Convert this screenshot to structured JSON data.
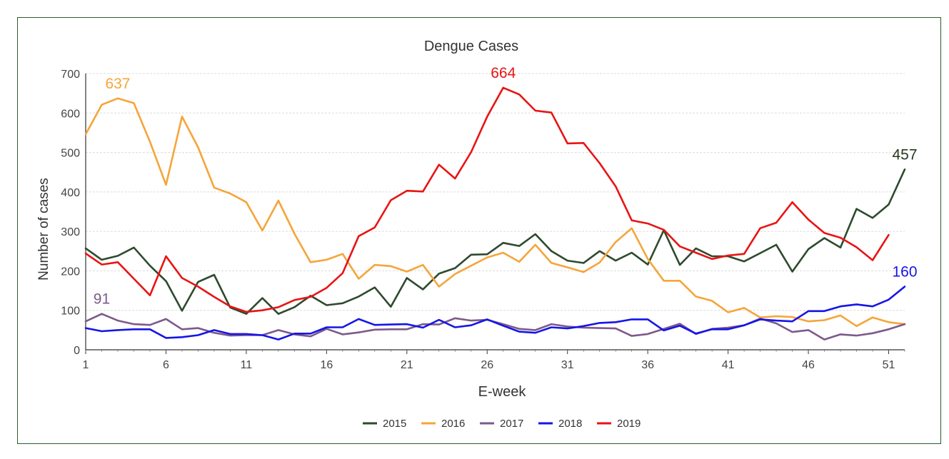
{
  "chart_data": {
    "type": "line",
    "title": "Dengue Cases",
    "xlabel": "E-week",
    "ylabel": "Number of cases",
    "ylim": [
      0,
      700
    ],
    "yticks": [
      0,
      100,
      200,
      300,
      400,
      500,
      600,
      700
    ],
    "xticks": [
      1,
      6,
      11,
      16,
      21,
      26,
      31,
      36,
      41,
      46,
      51
    ],
    "xlim": [
      1,
      52
    ],
    "grid": true,
    "legend_position": "bottom",
    "x": [
      1,
      2,
      3,
      4,
      5,
      6,
      7,
      8,
      9,
      10,
      11,
      12,
      13,
      14,
      15,
      16,
      17,
      18,
      19,
      20,
      21,
      22,
      23,
      24,
      25,
      26,
      27,
      28,
      29,
      30,
      31,
      32,
      33,
      34,
      35,
      36,
      37,
      38,
      39,
      40,
      41,
      42,
      43,
      44,
      45,
      46,
      47,
      48,
      49,
      50,
      51,
      52
    ],
    "series": [
      {
        "name": "2015",
        "color": "#2e4a2e",
        "values": [
          257,
          228,
          238,
          259,
          213,
          174,
          99,
          172,
          190,
          107,
          91,
          131,
          91,
          108,
          137,
          113,
          118,
          135,
          158,
          109,
          182,
          153,
          193,
          207,
          241,
          242,
          271,
          263,
          293,
          250,
          226,
          220,
          250,
          226,
          246,
          216,
          303,
          215,
          257,
          237,
          237,
          224,
          245,
          266,
          198,
          255,
          283,
          259,
          357,
          334,
          368,
          457
        ]
      },
      {
        "name": "2016",
        "color": "#f5a53a",
        "values": [
          546,
          621,
          637,
          625,
          527,
          418,
          591,
          513,
          411,
          396,
          374,
          302,
          378,
          294,
          222,
          228,
          243,
          180,
          215,
          212,
          198,
          215,
          160,
          192,
          213,
          234,
          246,
          223,
          266,
          220,
          209,
          197,
          221,
          273,
          308,
          230,
          175,
          175,
          135,
          124,
          95,
          106,
          82,
          85,
          83,
          72,
          75,
          87,
          60,
          82,
          70,
          65
        ]
      },
      {
        "name": "2017",
        "color": "#7d5a8a",
        "values": [
          72,
          91,
          74,
          65,
          63,
          78,
          52,
          55,
          43,
          36,
          37,
          37,
          50,
          39,
          34,
          53,
          39,
          44,
          51,
          52,
          52,
          65,
          64,
          80,
          74,
          76,
          65,
          53,
          50,
          65,
          59,
          56,
          55,
          54,
          35,
          40,
          53,
          66,
          40,
          53,
          56,
          62,
          79,
          67,
          45,
          50,
          26,
          39,
          36,
          42,
          52,
          65
        ]
      },
      {
        "name": "2018",
        "color": "#1515e8",
        "values": [
          55,
          47,
          50,
          52,
          52,
          30,
          32,
          37,
          50,
          40,
          40,
          37,
          26,
          41,
          41,
          57,
          57,
          78,
          63,
          64,
          65,
          56,
          76,
          57,
          62,
          77,
          61,
          46,
          43,
          57,
          54,
          60,
          68,
          70,
          77,
          77,
          49,
          61,
          41,
          52,
          52,
          62,
          77,
          74,
          72,
          98,
          98,
          110,
          115,
          110,
          127,
          160
        ]
      },
      {
        "name": "2019",
        "color": "#e81414",
        "values": [
          244,
          216,
          222,
          180,
          138,
          237,
          182,
          160,
          134,
          110,
          96,
          100,
          108,
          126,
          134,
          157,
          194,
          288,
          310,
          379,
          403,
          401,
          469,
          434,
          501,
          591,
          664,
          647,
          606,
          601,
          523,
          524,
          473,
          414,
          328,
          320,
          304,
          262,
          246,
          230,
          239,
          243,
          308,
          322,
          374,
          330,
          296,
          284,
          260,
          227,
          291,
          null
        ]
      }
    ],
    "annotations": [
      {
        "text": "637",
        "series": "2016",
        "color": "#f5a53a"
      },
      {
        "text": "664",
        "series": "2019",
        "color": "#e81414"
      },
      {
        "text": "457",
        "series": "2015",
        "color": "#2a3a1c"
      },
      {
        "text": "91",
        "series": "2017",
        "color": "#7d5a8a"
      },
      {
        "text": "160",
        "series": "2018",
        "color": "#1515e8"
      }
    ]
  }
}
